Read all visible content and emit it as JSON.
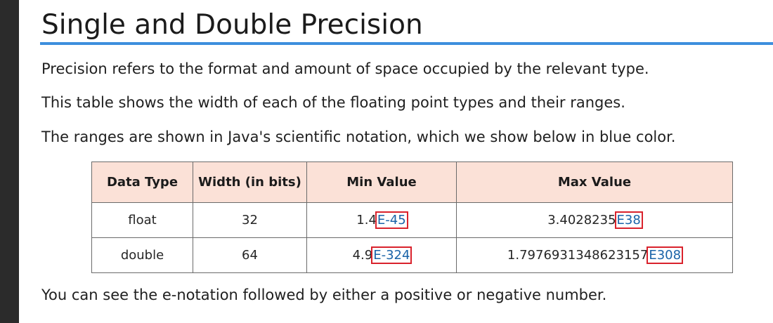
{
  "title": "Single and Double Precision",
  "paragraphs": [
    "Precision refers to the format and amount of space occupied by the relevant type.",
    "This table shows the width of each of the floating point types and their ranges.",
    "The ranges are shown in Java's scientific notation, which we show below in blue color."
  ],
  "footer_text": "You can see the e-notation followed by either a positive or negative number.",
  "table": {
    "headers": [
      "Data Type",
      "Width (in bits)",
      "Min Value",
      "Max Value"
    ],
    "rows": [
      {
        "type": "float",
        "width": "32",
        "min_mantissa": "1.4",
        "min_exponent": "E-45",
        "max_mantissa": "3.4028235",
        "max_exponent": "E38"
      },
      {
        "type": "double",
        "width": "64",
        "min_mantissa": "4.9",
        "min_exponent": "E-324",
        "max_mantissa": "1.7976931348623157",
        "max_exponent": "E308"
      }
    ]
  },
  "colors": {
    "title_rule": "#3d8fdd",
    "header_bg": "#fbe1d7",
    "exponent_text": "#1a63a8",
    "highlight_box": "#d9222c",
    "left_bar": "#2b2b2b"
  }
}
